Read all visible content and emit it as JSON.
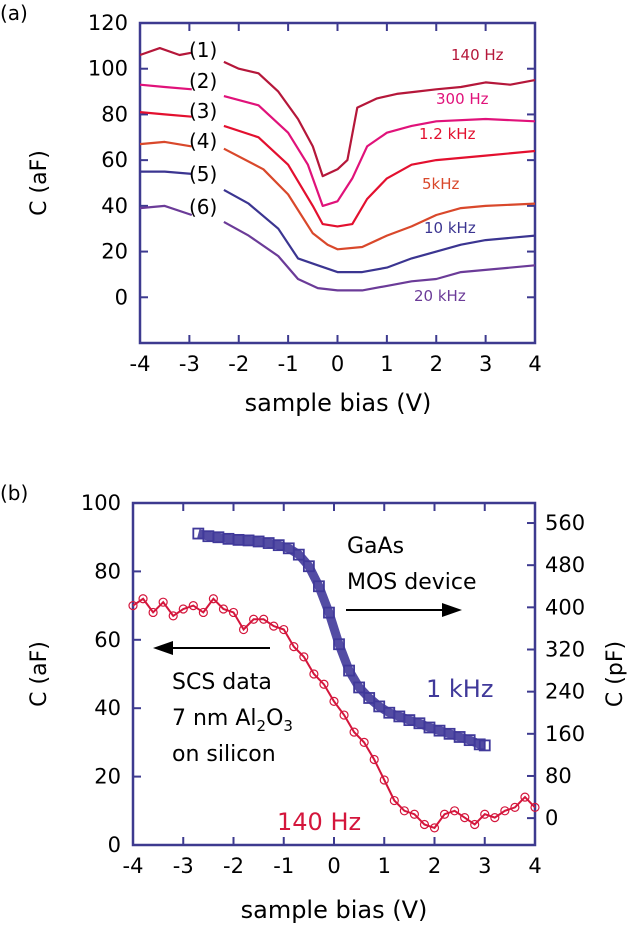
{
  "chart_data": [
    {
      "type": "line",
      "panel_label": "(a)",
      "xlabel": "sample bias (V)",
      "ylabel": "C (aF)",
      "xlim": [
        -4,
        4
      ],
      "ylim": [
        -20,
        120
      ],
      "xticks": [
        -4,
        -3,
        -2,
        -1,
        0,
        1,
        2,
        3,
        4
      ],
      "yticks": [
        0,
        20,
        40,
        60,
        80,
        100,
        120
      ],
      "grid": false,
      "axis_color": "#3d3a8f",
      "series": [
        {
          "name": "140 Hz",
          "tag": "(1)",
          "color": "#b5173a",
          "x": [
            -4,
            -3.6,
            -3.2,
            -2.95,
            -2.3,
            -2,
            -1.6,
            -1.2,
            -0.8,
            -0.5,
            -0.3,
            0,
            0.2,
            0.4,
            0.8,
            1.2,
            1.6,
            2,
            2.5,
            3,
            3.5,
            4
          ],
          "y": [
            106,
            109,
            106,
            107,
            103,
            100,
            98,
            90,
            78,
            66,
            53,
            56,
            60,
            83,
            87,
            89,
            90,
            91,
            92,
            94,
            93,
            95
          ]
        },
        {
          "name": "300 Hz",
          "tag": "(2)",
          "color": "#e0127a",
          "x": [
            -4,
            -3.5,
            -2.95,
            -2.3,
            -1.6,
            -1,
            -0.6,
            -0.3,
            0,
            0.3,
            0.6,
            1,
            1.5,
            2,
            3,
            4
          ],
          "y": [
            93,
            92,
            91,
            88,
            84,
            72,
            58,
            40,
            42,
            52,
            66,
            72,
            75,
            77,
            78,
            77
          ]
        },
        {
          "name": "1.2 kHz",
          "tag": "(3)",
          "color": "#e3102f",
          "x": [
            -4,
            -3.5,
            -2.95,
            -2.3,
            -1.6,
            -1,
            -0.5,
            -0.3,
            0,
            0.3,
            0.6,
            1,
            1.5,
            2,
            3,
            4
          ],
          "y": [
            81,
            80,
            79,
            75,
            70,
            58,
            40,
            32,
            31,
            32,
            43,
            52,
            58,
            60,
            62,
            64
          ]
        },
        {
          "name": "5kHz",
          "tag": "(4)",
          "color": "#d9482b",
          "x": [
            -4,
            -3.5,
            -2.95,
            -2.3,
            -1.5,
            -1,
            -0.5,
            -0.2,
            0,
            0.5,
            1,
            1.5,
            2,
            2.5,
            3,
            4
          ],
          "y": [
            67,
            68,
            66,
            65,
            56,
            45,
            28,
            23,
            21,
            22,
            27,
            31,
            36,
            39,
            40,
            41
          ]
        },
        {
          "name": "10 kHz",
          "tag": "(5)",
          "color": "#3b3591",
          "x": [
            -4,
            -3.5,
            -2.95,
            -2.3,
            -1.8,
            -1.2,
            -0.8,
            -0.4,
            0,
            0.5,
            1,
            1.5,
            2,
            2.5,
            3,
            4
          ],
          "y": [
            55,
            55,
            54,
            47,
            41,
            30,
            17,
            14,
            11,
            11,
            13,
            17,
            20,
            23,
            25,
            27
          ]
        },
        {
          "name": "20 kHz",
          "tag": "(6)",
          "color": "#6b3b98",
          "x": [
            -4,
            -3.5,
            -2.95,
            -2.3,
            -1.8,
            -1.2,
            -0.8,
            -0.4,
            0,
            0.5,
            1,
            1.5,
            2,
            2.5,
            3,
            4
          ],
          "y": [
            39,
            40,
            36,
            33,
            27,
            18,
            8,
            4,
            3,
            3,
            5,
            7,
            8,
            11,
            12,
            14
          ]
        }
      ]
    },
    {
      "type": "scatter",
      "panel_label": "(b)",
      "xlabel": "sample bias (V)",
      "ylabel": "C (aF)",
      "ylabel_right": "C (pF)",
      "xlim": [
        -4,
        4
      ],
      "ylim": [
        0,
        100
      ],
      "ylim_right": [
        -51,
        598
      ],
      "xticks": [
        -4,
        -3,
        -2,
        -1,
        0,
        1,
        2,
        3,
        4
      ],
      "yticks": [
        0,
        20,
        40,
        60,
        80,
        100
      ],
      "yticks_right": [
        0,
        80,
        160,
        240,
        320,
        400,
        480,
        560
      ],
      "grid": false,
      "axis_color": "#3d3a8f",
      "annotations": {
        "gaas_line1": "GaAs",
        "gaas_line2": "MOS device",
        "scs_line1": "SCS data",
        "scs_line2_prefix": "7 nm Al",
        "scs_sub1": "2",
        "scs_mid": "O",
        "scs_sub2": "3",
        "scs_line3": "on silicon"
      },
      "series": [
        {
          "name": "140 Hz",
          "axis": "left",
          "marker": "circle",
          "color": "#d4163c",
          "x": [
            -4,
            -3.8,
            -3.6,
            -3.4,
            -3.2,
            -3,
            -2.8,
            -2.6,
            -2.4,
            -2.2,
            -2,
            -1.8,
            -1.6,
            -1.4,
            -1.2,
            -1,
            -0.8,
            -0.6,
            -0.4,
            -0.2,
            0,
            0.2,
            0.4,
            0.6,
            0.8,
            1,
            1.2,
            1.4,
            1.6,
            1.8,
            2,
            2.2,
            2.4,
            2.6,
            2.8,
            3,
            3.2,
            3.4,
            3.6,
            3.8,
            4
          ],
          "y": [
            70,
            72,
            68,
            71,
            67,
            69,
            70,
            68,
            72,
            69,
            68,
            63,
            66,
            66,
            64,
            63,
            58,
            55,
            50,
            47,
            42,
            38,
            33,
            30,
            25,
            19,
            13,
            10,
            9,
            6,
            5,
            9,
            10,
            8,
            6,
            9,
            8,
            10,
            11,
            14,
            11
          ]
        },
        {
          "name": "1 kHz",
          "axis": "right",
          "marker": "square",
          "color": "#40399a",
          "x": [
            -2.7,
            -2.5,
            -2.3,
            -2.1,
            -1.9,
            -1.7,
            -1.5,
            -1.3,
            -1.1,
            -0.9,
            -0.7,
            -0.5,
            -0.3,
            -0.1,
            0.1,
            0.3,
            0.5,
            0.7,
            0.9,
            1.1,
            1.3,
            1.5,
            1.7,
            1.9,
            2.1,
            2.3,
            2.5,
            2.7,
            2.9,
            3.0
          ],
          "y": [
            540,
            535,
            533,
            530,
            528,
            527,
            525,
            522,
            518,
            512,
            500,
            478,
            440,
            390,
            330,
            280,
            248,
            228,
            212,
            200,
            193,
            186,
            180,
            172,
            166,
            160,
            154,
            148,
            140,
            138
          ]
        }
      ]
    }
  ]
}
